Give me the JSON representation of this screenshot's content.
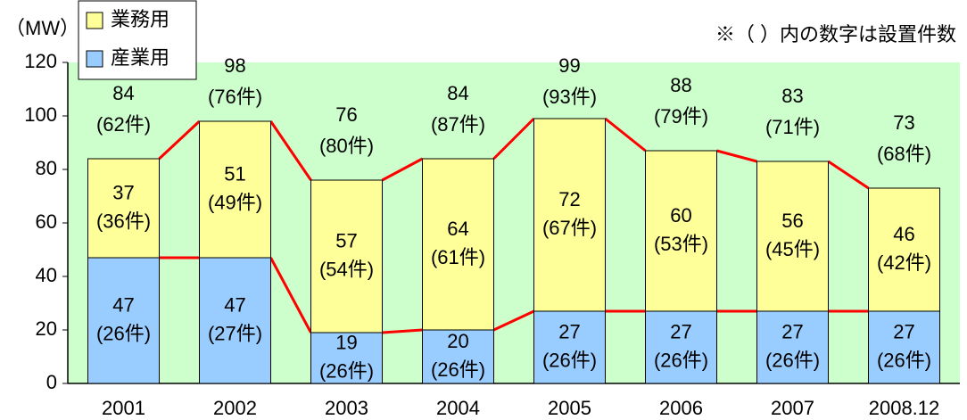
{
  "chart_data": {
    "type": "bar",
    "stacked": true,
    "y_label": "（MW）",
    "note": "※（ ）内の数字は設置件数",
    "categories": [
      "2001",
      "2002",
      "2003",
      "2004",
      "2005",
      "2006",
      "2007",
      "2008.12"
    ],
    "series": [
      {
        "name": "産業用",
        "color": "#99ccff",
        "values": [
          47,
          47,
          19,
          20,
          27,
          27,
          27,
          27
        ],
        "count_labels": [
          "(26件)",
          "(27件)",
          "(26件)",
          "(26件)",
          "(26件)",
          "(26件)",
          "(26件)",
          "(26件)"
        ]
      },
      {
        "name": "業務用",
        "color": "#ffff99",
        "values": [
          37,
          51,
          57,
          64,
          72,
          60,
          56,
          46
        ],
        "count_labels": [
          "(36件)",
          "(49件)",
          "(54件)",
          "(61件)",
          "(67件)",
          "(53件)",
          "(45件)",
          "(42件)"
        ]
      }
    ],
    "totals": {
      "values": [
        84,
        98,
        76,
        84,
        99,
        88,
        83,
        73
      ],
      "count_labels": [
        "(62件)",
        "(76件)",
        "(80件)",
        "(87件)",
        "(93件)",
        "(79件)",
        "(71件)",
        "(68件)"
      ]
    },
    "ylim": [
      0,
      120
    ],
    "yticks": [
      0,
      20,
      40,
      60,
      80,
      100,
      120
    ],
    "plot_background": "#ccffcc",
    "connector_color": "#ff0000",
    "legend_position": "top-left"
  }
}
